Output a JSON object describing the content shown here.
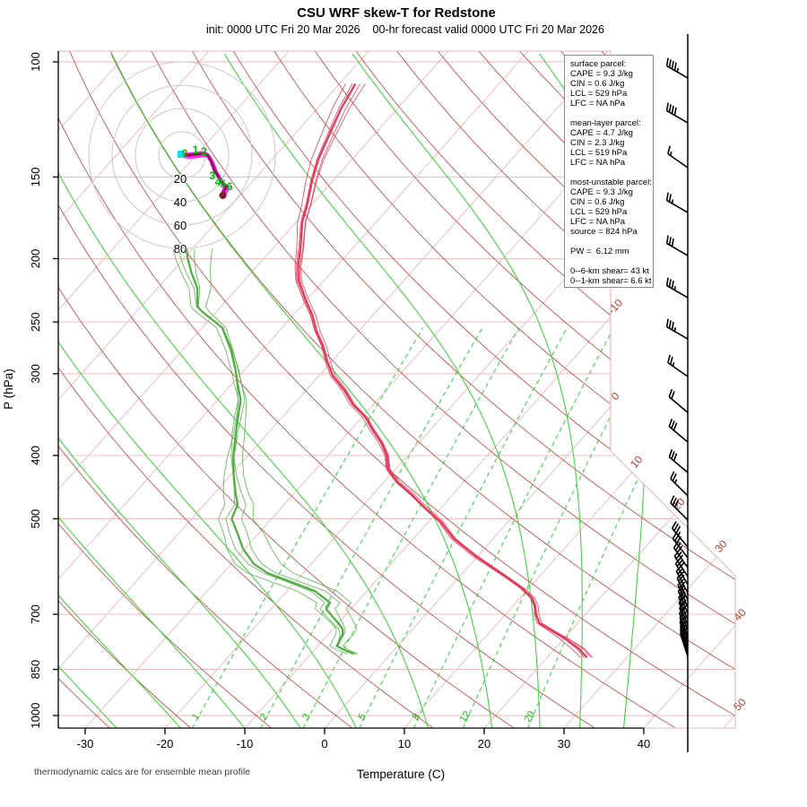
{
  "title": "CSU WRF skew-T for Redstone",
  "subtitle": "init: 0000 UTC Fri 20 Mar 2026    00-hr forecast valid 0000 UTC Fri 20 Mar 2026",
  "footer": "thermodynamic calcs are for ensemble mean profile",
  "axes": {
    "x_title": "Temperature (C)",
    "y_title": "P (hPa)",
    "x_ticks": [
      -30,
      -20,
      -10,
      0,
      10,
      20,
      30,
      40
    ],
    "pressure_ticks": [
      100,
      150,
      200,
      250,
      300,
      400,
      500,
      700,
      850,
      1000
    ]
  },
  "stats_panel": {
    "sections": [
      {
        "title": "surface parcel:",
        "lines": [
          "CAPE = 9.3 J/kg",
          "CIN = 0.6 J/kg",
          "LCL = 529 hPa",
          "LFC = NA hPa"
        ]
      },
      {
        "title": "mean-layer parcel:",
        "lines": [
          "CAPE = 4.7 J/kg",
          "CIN = 2.3 J/kg",
          "LCL = 519 hPa",
          "LFC = NA hPa"
        ]
      },
      {
        "title": "most-unstable parcel:",
        "lines": [
          "CAPE = 9.3 J/kg",
          "CIN = 0.6 J/kg",
          "LCL = 529 hPa",
          "LFC = NA hPa",
          "source = 824 hPa"
        ]
      }
    ],
    "pw_line": "PW =  6.12 mm",
    "shear_lines": [
      "0--6-km shear= 43 kt",
      "0--1-km shear= 6.6 kt"
    ]
  },
  "chart_data": {
    "type": "line",
    "subtype": "skew-T log-p sounding",
    "xlabel": "Temperature (C)",
    "ylabel": "P (hPa)",
    "x_range_c": [
      -33,
      41
    ],
    "pressure_range_hpa": [
      96,
      1046
    ],
    "pressure_gridlines": [
      100,
      150,
      200,
      250,
      300,
      400,
      500,
      700,
      850,
      1000
    ],
    "isotherm_step_c": 10,
    "isotherm_labels_c": [
      -10,
      0,
      10,
      20,
      30,
      40,
      50
    ],
    "dry_adiabats_theta_c": {
      "start": -60,
      "end": 200,
      "step": 10
    },
    "moist_adiabats_start_temp_c": [
      -26,
      -18,
      -10,
      -3,
      4,
      13,
      21,
      27,
      32,
      37.5
    ],
    "mixing_ratio_lines_gkg": [
      1,
      2,
      3,
      5,
      8,
      12,
      20
    ],
    "temperature_profile_p_T": [
      [
        108,
        -68
      ],
      [
        118,
        -67
      ],
      [
        130,
        -65.5
      ],
      [
        141,
        -64.2
      ],
      [
        152,
        -62.6
      ],
      [
        165,
        -60.6
      ],
      [
        176,
        -59.2
      ],
      [
        193,
        -56.5
      ],
      [
        205,
        -54.9
      ],
      [
        216,
        -53.2
      ],
      [
        231,
        -50.2
      ],
      [
        244,
        -47.6
      ],
      [
        258,
        -45.3
      ],
      [
        272,
        -42.8
      ],
      [
        287,
        -40.6
      ],
      [
        302,
        -38.3
      ],
      [
        318,
        -35.2
      ],
      [
        334,
        -32.6
      ],
      [
        350,
        -29.5
      ],
      [
        366,
        -27.2
      ],
      [
        382,
        -24.8
      ],
      [
        400,
        -22.6
      ],
      [
        420,
        -20.9
      ],
      [
        440,
        -18.2
      ],
      [
        460,
        -15.0
      ],
      [
        481,
        -12.0
      ],
      [
        505,
        -8.5
      ],
      [
        535,
        -5.1
      ],
      [
        570,
        -0.3
      ],
      [
        612,
        5.7
      ],
      [
        640,
        9.3
      ],
      [
        661,
        11.5
      ],
      [
        680,
        12.8
      ],
      [
        700,
        13.8
      ],
      [
        722,
        15.2
      ],
      [
        745,
        18.0
      ],
      [
        767,
        20.6
      ],
      [
        790,
        23.0
      ],
      [
        815,
        25.0
      ]
    ],
    "dewpoint_profile_p_T": [
      [
        193,
        -70.8
      ],
      [
        200,
        -69.5
      ],
      [
        210,
        -67.5
      ],
      [
        222,
        -65.0
      ],
      [
        237,
        -62.9
      ],
      [
        241,
        -61.8
      ],
      [
        255,
        -57.5
      ],
      [
        276,
        -53.9
      ],
      [
        296,
        -51.1
      ],
      [
        310,
        -49.4
      ],
      [
        329,
        -47.1
      ],
      [
        350,
        -45.5
      ],
      [
        370,
        -44.0
      ],
      [
        402,
        -41.7
      ],
      [
        430,
        -39.5
      ],
      [
        455,
        -37.5
      ],
      [
        476,
        -35.8
      ],
      [
        500,
        -35.0
      ],
      [
        528,
        -32.5
      ],
      [
        556,
        -30.2
      ],
      [
        586,
        -27.2
      ],
      [
        605,
        -24.5
      ],
      [
        621,
        -21.2
      ],
      [
        645,
        -16.5
      ],
      [
        672,
        -13.3
      ],
      [
        687,
        -13.1
      ],
      [
        705,
        -11.5
      ],
      [
        722,
        -10.0
      ],
      [
        737,
        -8.8
      ],
      [
        751,
        -8.2
      ],
      [
        768,
        -7.9
      ],
      [
        783,
        -7.6
      ],
      [
        794,
        -6.2
      ],
      [
        805,
        -4.6
      ]
    ],
    "ensemble_members": 4,
    "hodograph": {
      "ring_interval_kt": 20,
      "ring_labels": [
        "20",
        "40",
        "60",
        "80"
      ],
      "trace_uv_kt": [
        [
          -0.8,
          0.8
        ],
        [
          5.4,
          0
        ],
        [
          13,
          0.8
        ],
        [
          19,
          1.5
        ],
        [
          22,
          0
        ],
        [
          25,
          -5
        ],
        [
          28,
          -13
        ],
        [
          31,
          -18
        ],
        [
          33,
          -22
        ],
        [
          36,
          -25
        ],
        [
          38,
          -27
        ],
        [
          36,
          -31
        ],
        [
          35,
          -34.6
        ]
      ],
      "height_markers_km": [
        {
          "km": "0",
          "u": 2.3,
          "v": 1.5
        },
        {
          "km": "1",
          "u": 11.5,
          "v": 4.6
        },
        {
          "km": "2",
          "u": 19.0,
          "v": 3.0
        },
        {
          "km": "3",
          "u": 26.0,
          "v": -17.7
        },
        {
          "km": "4",
          "u": 30.8,
          "v": -23.0
        },
        {
          "km": "5",
          "u": 35.0,
          "v": -24.6
        },
        {
          "km": "6",
          "u": 40.8,
          "v": -27.0
        }
      ],
      "start_marker_uv": [
        -0.8,
        0.8
      ]
    },
    "wind_barbs": [
      {
        "y": 87,
        "kt": 45,
        "dir": 300
      },
      {
        "y": 137,
        "kt": 40,
        "dir": 300
      },
      {
        "y": 187,
        "kt": 15,
        "dir": 305
      },
      {
        "y": 237,
        "kt": 25,
        "dir": 300
      },
      {
        "y": 285,
        "kt": 30,
        "dir": 300
      },
      {
        "y": 332,
        "kt": 35,
        "dir": 300
      },
      {
        "y": 378,
        "kt": 35,
        "dir": 300
      },
      {
        "y": 420,
        "kt": 25,
        "dir": 305
      },
      {
        "y": 460,
        "kt": 20,
        "dir": 310
      },
      {
        "y": 493,
        "kt": 30,
        "dir": 310
      },
      {
        "y": 527,
        "kt": 30,
        "dir": 310
      },
      {
        "y": 553,
        "kt": 25,
        "dir": 315
      },
      {
        "y": 580,
        "kt": 30,
        "dir": 315
      },
      {
        "y": 610,
        "kt": 35,
        "dir": 320
      },
      {
        "y": 622,
        "kt": 35,
        "dir": 322
      },
      {
        "y": 633,
        "kt": 35,
        "dir": 325
      },
      {
        "y": 643,
        "kt": 30,
        "dir": 327
      },
      {
        "y": 652,
        "kt": 30,
        "dir": 330
      },
      {
        "y": 661,
        "kt": 30,
        "dir": 332
      },
      {
        "y": 669,
        "kt": 25,
        "dir": 334
      },
      {
        "y": 677,
        "kt": 25,
        "dir": 336
      },
      {
        "y": 684,
        "kt": 25,
        "dir": 337
      },
      {
        "y": 691,
        "kt": 20,
        "dir": 338
      },
      {
        "y": 697,
        "kt": 20,
        "dir": 339
      },
      {
        "y": 703,
        "kt": 20,
        "dir": 340
      },
      {
        "y": 709,
        "kt": 15,
        "dir": 340
      },
      {
        "y": 714,
        "kt": 15,
        "dir": 341
      },
      {
        "y": 719,
        "kt": 15,
        "dir": 341
      },
      {
        "y": 724,
        "kt": 10,
        "dir": 342
      },
      {
        "y": 728,
        "kt": 10,
        "dir": 342
      },
      {
        "y": 732,
        "kt": 10,
        "dir": 342
      }
    ]
  },
  "colors": {
    "grid_pink": "#f2b6b6",
    "border_pink": "#dcb9b9",
    "dry_adiabat": "#ae3b33",
    "moist_adiabat": "#44d244",
    "mixing_ratio": "#2ecc40",
    "mixing_label": "#15b815",
    "isotherm_label": "#c0392b",
    "temperature_curve": "#e23b5b",
    "dewpoint_curve": "#54ae46",
    "hodo_ring": "#c9c9c9",
    "hodo_trace": "#ff00ff",
    "hodo_core": "#7a1f2b",
    "hodo_height_label": "#00bb00",
    "hodo_start": "#00e5ee",
    "barb": "#000000",
    "axis": "#000000"
  }
}
